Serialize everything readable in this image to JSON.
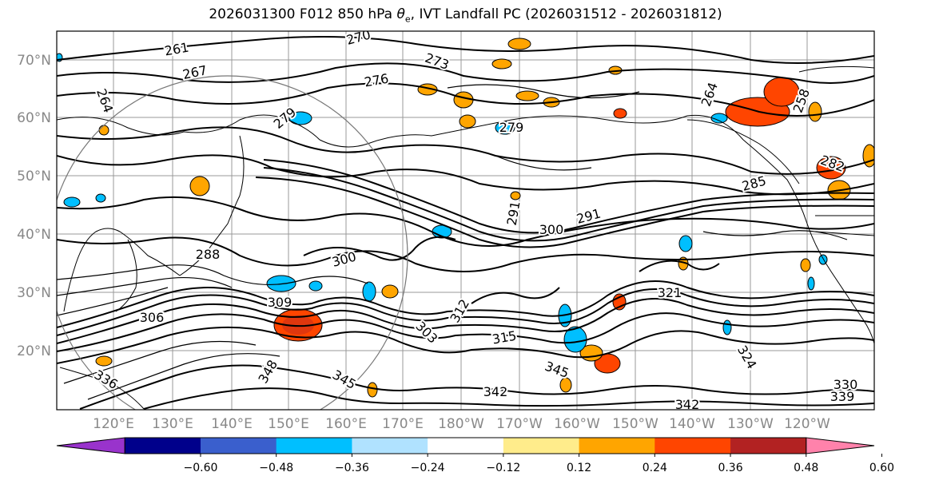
{
  "title": {
    "prefix": "2026031300 F012 850 hPa ",
    "theta": "θ",
    "sub": "e",
    "suffix": ", IVT Landfall PC (2026031512 - 2026031812)"
  },
  "lat_labels": [
    "70°N",
    "60°N",
    "50°N",
    "40°N",
    "30°N",
    "20°N"
  ],
  "lon_labels": [
    "120°E",
    "130°E",
    "140°E",
    "150°E",
    "160°E",
    "170°E",
    "180°W",
    "170°W",
    "160°W",
    "150°W",
    "140°W",
    "130°W",
    "120°W"
  ],
  "colorbar": {
    "colors": [
      "#9933cc",
      "#00008b",
      "#3a5fcd",
      "#00bfff",
      "#b0e2ff",
      "#ffffff",
      "#ffec8b",
      "#ffa500",
      "#ff4500",
      "#b22222",
      "#ff82ab"
    ],
    "ticks": [
      "−0.60",
      "−0.48",
      "−0.36",
      "−0.24",
      "−0.12",
      "0.12",
      "0.24",
      "0.36",
      "0.48",
      "0.60"
    ]
  },
  "contour_labels": [
    "261",
    "270",
    "267",
    "273",
    "276",
    "279",
    "264",
    "264",
    "279",
    "258",
    "285",
    "282",
    "291",
    "300",
    "291",
    "288",
    "300",
    "306",
    "309",
    "315",
    "303",
    "312",
    "321",
    "324",
    "345",
    "348",
    "336",
    "342",
    "345",
    "342",
    "330",
    "339"
  ]
}
